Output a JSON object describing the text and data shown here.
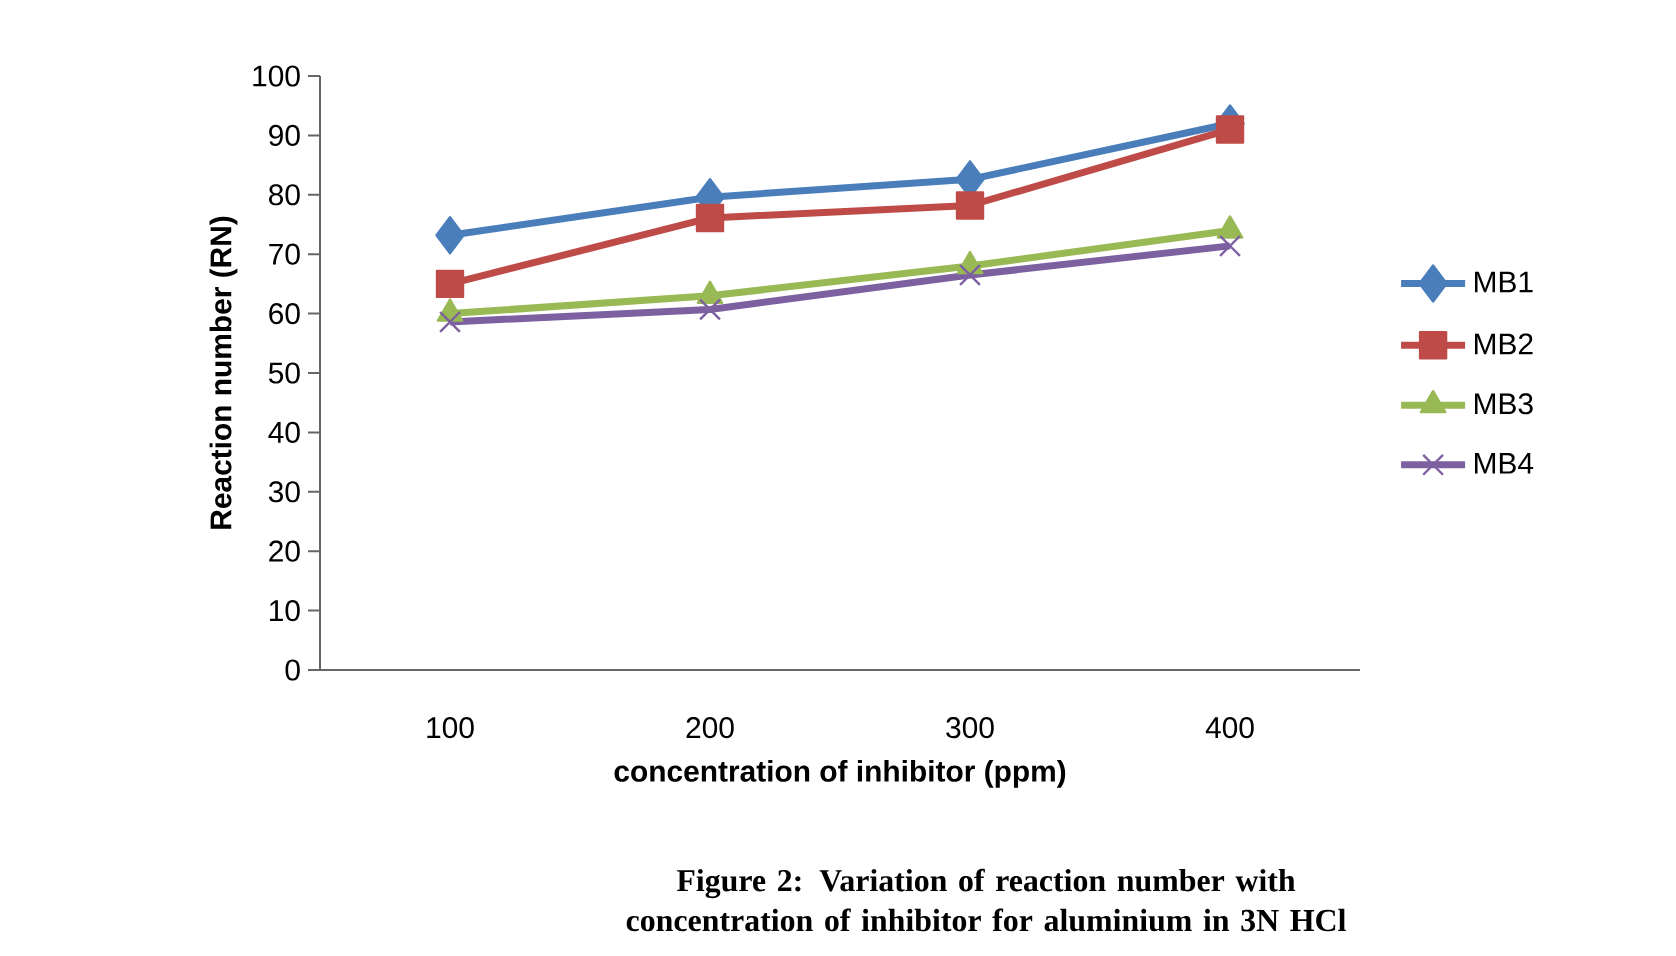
{
  "chart_data": {
    "type": "line",
    "categories": [
      "100",
      "200",
      "300",
      "400"
    ],
    "xlabel": "concentration of inhibitor (ppm)",
    "ylabel": "Reaction number (RN)",
    "ylim": [
      0,
      100
    ],
    "yticks": [
      0,
      10,
      20,
      30,
      40,
      50,
      60,
      70,
      80,
      90,
      100
    ],
    "legend": "right",
    "annotations": [
      "Figure 2: Variation of reaction number with concentration of inhibitor for aluminium in 3N HCl"
    ],
    "series": [
      {
        "name": "MB1",
        "color": "#4a7ebb",
        "marker": "diamond",
        "values": [
          73.2,
          79.6,
          82.6,
          92
        ]
      },
      {
        "name": "MB2",
        "color": "#be4b48",
        "marker": "square",
        "values": [
          65,
          76.1,
          78.2,
          91
        ]
      },
      {
        "name": "MB3",
        "color": "#98b954",
        "marker": "triangle",
        "values": [
          60,
          63,
          68,
          74
        ]
      },
      {
        "name": "MB4",
        "color": "#7d60a0",
        "marker": "cross",
        "values": [
          58.6,
          60.7,
          66.5,
          71.4
        ]
      }
    ]
  }
}
